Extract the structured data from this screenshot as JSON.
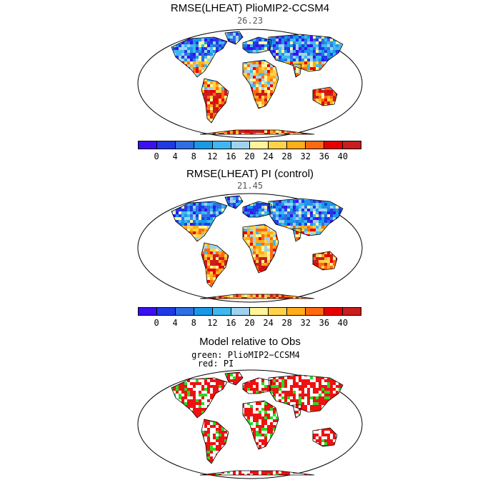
{
  "panels": [
    {
      "title": "RMSE(LHEAT) PlioMIP2-CCSM4",
      "value": "26.23"
    },
    {
      "title": "RMSE(LHEAT) PI (control)",
      "value": "21.45"
    }
  ],
  "colorbar": {
    "colors": [
      "#3a10f0",
      "#1f3be6",
      "#2f6fe3",
      "#1a98e8",
      "#3fb8f0",
      "#9fd2ee",
      "#fff59a",
      "#ffd24a",
      "#ffad1a",
      "#ff6a10",
      "#e80000",
      "#c81e1e"
    ],
    "tick_labels": [
      "0",
      "4",
      "8",
      "12",
      "16",
      "20",
      "24",
      "28",
      "32",
      "36",
      "40"
    ]
  },
  "comparison": {
    "title": "Model relative to Obs",
    "legend_green": "green: PlioMIP2−CCSM4",
    "legend_red": "red: PI",
    "green_color": "#22dd22",
    "red_color": "#ee1111"
  }
}
